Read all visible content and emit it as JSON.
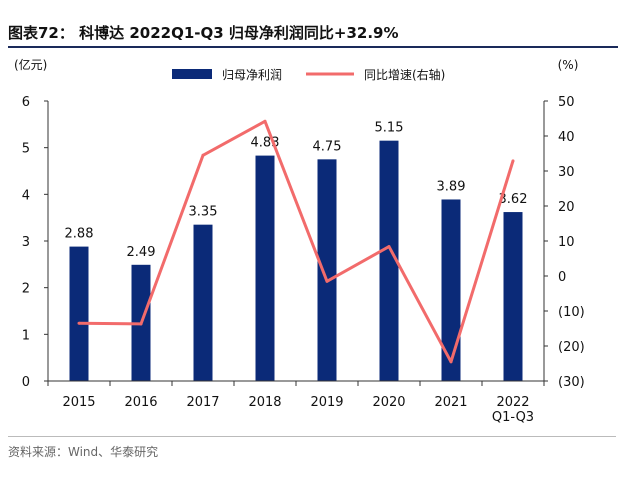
{
  "header": {
    "title": "图表72：  科博达 2022Q1-Q3 归母净利润同比+32.9%"
  },
  "footer": {
    "source": "资料来源：Wind、华泰研究"
  },
  "chart_data": {
    "type": "bar+line",
    "title": "科博达 2022Q1-Q3 归母净利润同比+32.9%",
    "left_axis_unit": "(亿元)",
    "right_axis_unit": "(%)",
    "categories": [
      [
        "2015"
      ],
      [
        "2016"
      ],
      [
        "2017"
      ],
      [
        "2018"
      ],
      [
        "2019"
      ],
      [
        "2020"
      ],
      [
        "2021"
      ],
      [
        "2022",
        "Q1-Q3"
      ]
    ],
    "left_ylim": [
      0,
      6
    ],
    "left_yticks": [
      "0",
      "1",
      "2",
      "3",
      "4",
      "5",
      "6"
    ],
    "right_ylim": [
      -30,
      50
    ],
    "right_yticks": [
      "(30)",
      "(20)",
      "(10)",
      "0",
      "10",
      "20",
      "30",
      "40",
      "50"
    ],
    "series": [
      {
        "name": "归母净利润",
        "type": "bar",
        "axis": "left",
        "color": "#0b2a78",
        "values": [
          2.88,
          2.49,
          3.35,
          4.83,
          4.75,
          5.15,
          3.89,
          3.62
        ],
        "labels": [
          "2.88",
          "2.49",
          "3.35",
          "4.83",
          "4.75",
          "5.15",
          "3.89",
          "3.62"
        ]
      },
      {
        "name": "同比增速(右轴)",
        "type": "line",
        "axis": "right",
        "color": "#f26b6b",
        "values": [
          -13.5,
          -13.7,
          34.5,
          44.2,
          -1.5,
          8.4,
          -24.5,
          32.9
        ]
      }
    ],
    "grid": false,
    "legend": "top-center"
  }
}
